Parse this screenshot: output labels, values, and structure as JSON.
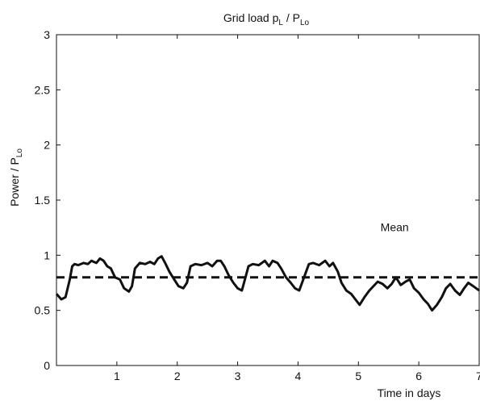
{
  "chart_data": {
    "type": "line",
    "title": {
      "prefix": "Grid load p",
      "sub1": "L",
      "mid": " / P",
      "sub2": "Lo"
    },
    "xlabel": "Time in days",
    "ylabel": {
      "prefix": "Power / P",
      "sub": "Lo"
    },
    "xlim": [
      0,
      7
    ],
    "ylim": [
      0,
      3
    ],
    "xticks": [
      1,
      2,
      3,
      4,
      5,
      6,
      7
    ],
    "yticks": [
      0,
      0.5,
      1,
      1.5,
      2,
      2.5,
      3
    ],
    "grid": false,
    "annotations": [
      {
        "text": "Mean",
        "x": 5.6,
        "y": 1.22
      }
    ],
    "series": [
      {
        "style": "solid",
        "color": "#111111",
        "x": [
          0,
          0.08,
          0.15,
          0.22,
          0.26,
          0.3,
          0.36,
          0.45,
          0.52,
          0.58,
          0.66,
          0.72,
          0.78,
          0.84,
          0.9,
          0.97,
          1.05,
          1.12,
          1.2,
          1.25,
          1.3,
          1.38,
          1.47,
          1.55,
          1.62,
          1.68,
          1.74,
          1.8,
          1.87,
          1.95,
          2.02,
          2.1,
          2.16,
          2.22,
          2.3,
          2.4,
          2.5,
          2.58,
          2.66,
          2.72,
          2.78,
          2.85,
          2.93,
          3.0,
          3.07,
          3.12,
          3.18,
          3.25,
          3.35,
          3.45,
          3.52,
          3.58,
          3.66,
          3.72,
          3.8,
          3.88,
          3.95,
          4.02,
          4.1,
          4.18,
          4.25,
          4.35,
          4.45,
          4.52,
          4.58,
          4.66,
          4.72,
          4.8,
          4.88,
          4.95,
          5.02,
          5.1,
          5.18,
          5.25,
          5.32,
          5.4,
          5.48,
          5.55,
          5.62,
          5.7,
          5.78,
          5.85,
          5.92,
          6.0,
          6.08,
          6.15,
          6.22,
          6.3,
          6.38,
          6.45,
          6.52,
          6.6,
          6.68,
          6.75,
          6.82,
          6.9,
          7.0
        ],
        "y": [
          0.65,
          0.6,
          0.62,
          0.78,
          0.9,
          0.92,
          0.91,
          0.93,
          0.92,
          0.95,
          0.93,
          0.97,
          0.95,
          0.9,
          0.88,
          0.8,
          0.78,
          0.7,
          0.67,
          0.72,
          0.88,
          0.93,
          0.92,
          0.94,
          0.92,
          0.97,
          0.99,
          0.93,
          0.85,
          0.78,
          0.72,
          0.7,
          0.75,
          0.9,
          0.92,
          0.91,
          0.93,
          0.9,
          0.95,
          0.95,
          0.9,
          0.82,
          0.75,
          0.7,
          0.68,
          0.78,
          0.9,
          0.92,
          0.91,
          0.95,
          0.9,
          0.95,
          0.93,
          0.88,
          0.8,
          0.75,
          0.7,
          0.68,
          0.8,
          0.92,
          0.93,
          0.91,
          0.95,
          0.9,
          0.93,
          0.85,
          0.75,
          0.68,
          0.65,
          0.6,
          0.55,
          0.62,
          0.68,
          0.72,
          0.76,
          0.74,
          0.7,
          0.74,
          0.8,
          0.73,
          0.76,
          0.78,
          0.7,
          0.66,
          0.6,
          0.56,
          0.5,
          0.55,
          0.62,
          0.7,
          0.74,
          0.68,
          0.64,
          0.7,
          0.75,
          0.72,
          0.68
        ]
      },
      {
        "label": "Mean",
        "style": "dashed",
        "color": "#111111",
        "x": [
          0,
          7
        ],
        "y": [
          0.8,
          0.8
        ]
      }
    ]
  }
}
